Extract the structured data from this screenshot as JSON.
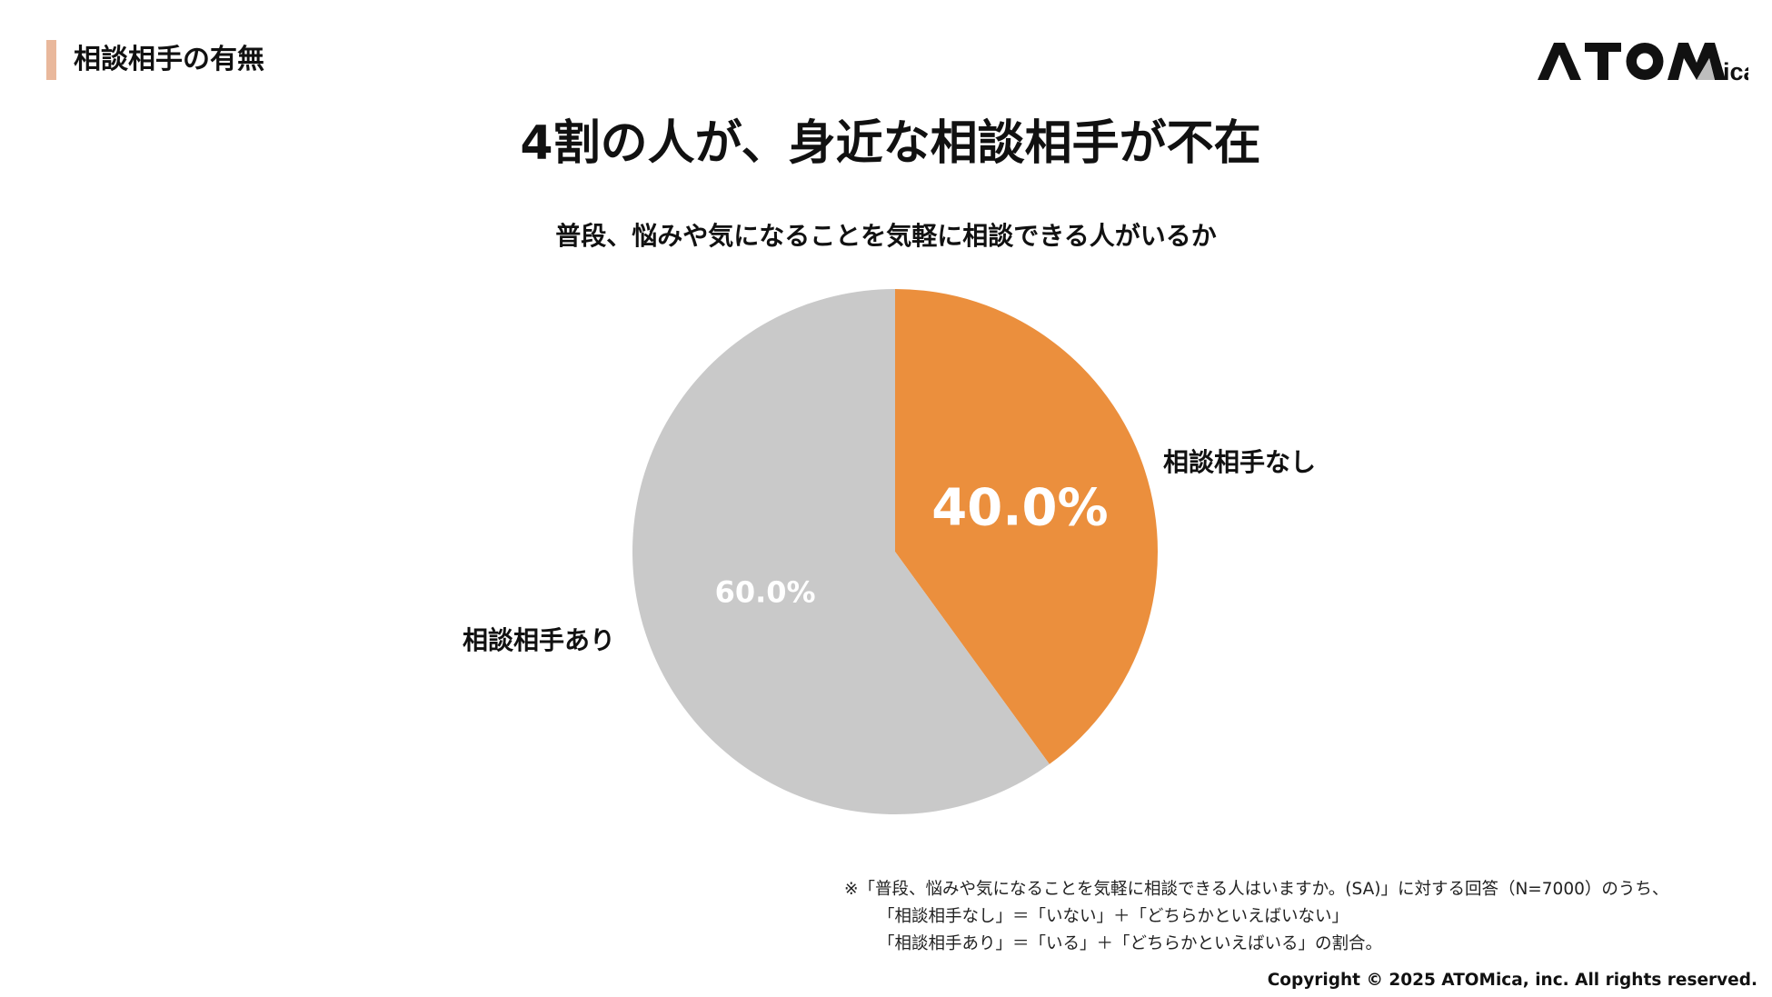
{
  "header": {
    "section_title": "相談相手の有無",
    "accent_color": "#e9b89c",
    "logo_text": "ATOMica"
  },
  "slide": {
    "title": "4割の人が、身近な相談相手が不在"
  },
  "chart_data": {
    "type": "pie",
    "title": "普段、悩みや気になることを気軽に相談できる人がいるか",
    "slices": [
      {
        "label": "相談相手なし",
        "value": 40.0,
        "value_label": "40.0%",
        "color": "#eb8f3d"
      },
      {
        "label": "相談相手あり",
        "value": 60.0,
        "value_label": "60.0%",
        "color": "#c9c9c9"
      }
    ],
    "start": "12 o'clock",
    "direction": "clockwise"
  },
  "footnote": {
    "lines": [
      "※「普段、悩みや気になることを気軽に相談できる人はいますか。(SA)」に対する回答（N=7000）のうち、",
      "「相談相手なし」＝「いない」＋「どちらかといえばいない」",
      "「相談相手あり」＝「いる」＋「どちらかといえばいる」の割合。"
    ]
  },
  "copyright": "Copyright © 2025 ATOMica, inc. All rights reserved."
}
